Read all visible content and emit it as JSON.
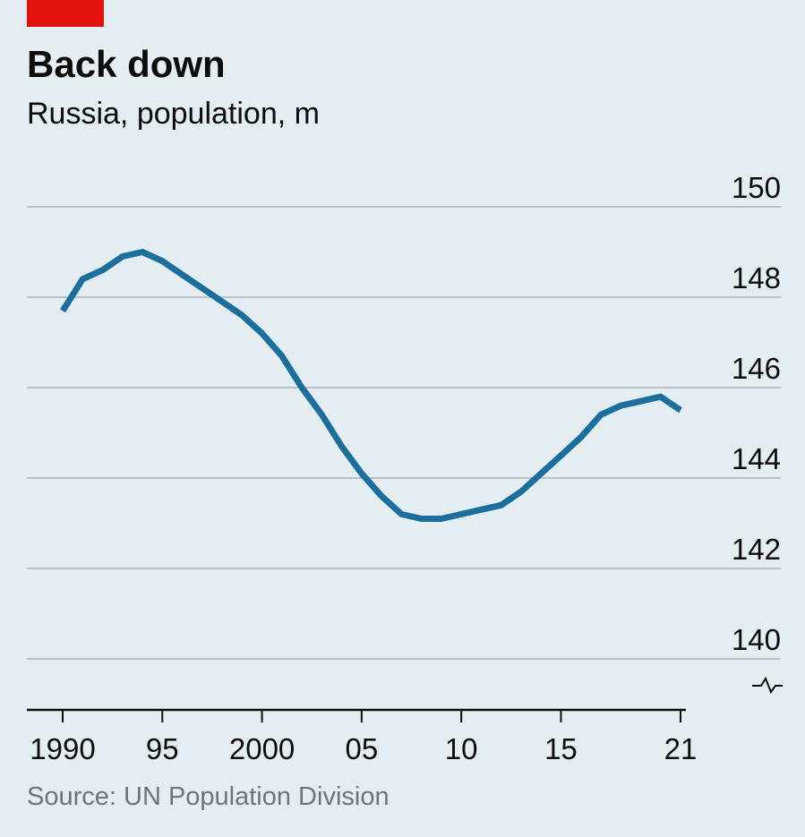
{
  "chart_data": {
    "type": "line",
    "title": "Back down",
    "subtitle": "Russia, population, m",
    "source": "Source: UN Population Division",
    "x": [
      1990,
      1991,
      1992,
      1993,
      1994,
      1995,
      1996,
      1997,
      1998,
      1999,
      2000,
      2001,
      2002,
      2003,
      2004,
      2005,
      2006,
      2007,
      2008,
      2009,
      2010,
      2011,
      2012,
      2013,
      2014,
      2015,
      2016,
      2017,
      2018,
      2019,
      2020,
      2021
    ],
    "series": [
      {
        "values": [
          147.7,
          148.4,
          148.6,
          148.9,
          149.0,
          148.8,
          148.5,
          148.2,
          147.9,
          147.6,
          147.2,
          146.7,
          146.0,
          145.4,
          144.7,
          144.1,
          143.6,
          143.2,
          143.1,
          143.1,
          143.2,
          143.3,
          143.4,
          143.7,
          144.1,
          144.5,
          144.9,
          145.4,
          145.6,
          145.7,
          145.8,
          145.5
        ],
        "color": "#1c6e9c"
      }
    ],
    "x_ticks": [
      1990,
      1995,
      2000,
      2005,
      2010,
      2015,
      2021
    ],
    "x_tick_labels": [
      "1990",
      "95",
      "2000",
      "05",
      "10",
      "15",
      "21"
    ],
    "y_ticks": [
      140,
      142,
      144,
      146,
      148,
      150
    ],
    "y_tick_labels": [
      "140",
      "142",
      "144",
      "146",
      "148",
      "150"
    ],
    "ylim": [
      140,
      150
    ],
    "xlim": [
      1990,
      2021
    ],
    "y_axis_break": true,
    "grid": true,
    "accent_color": "#e3120b"
  }
}
